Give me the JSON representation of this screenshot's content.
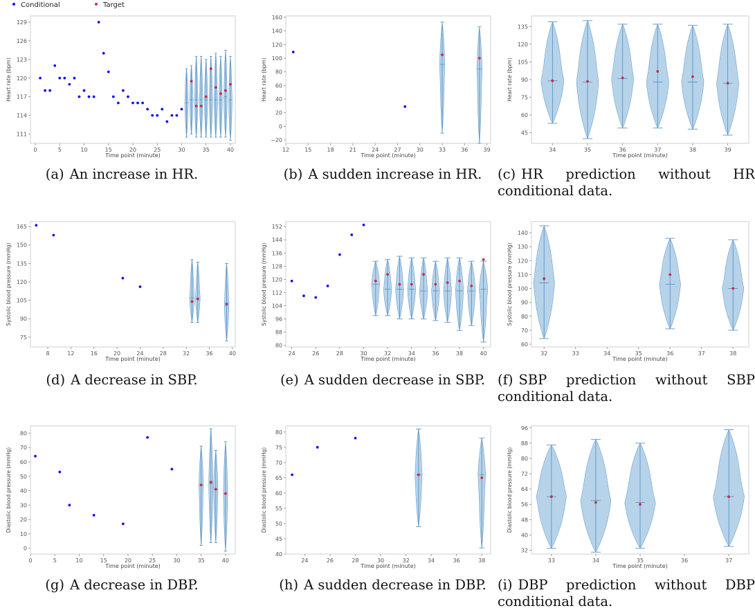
{
  "legend": {
    "items": [
      {
        "label": "Conditional",
        "color": "#1010ee"
      },
      {
        "label": "Target",
        "color": "#cc2b45"
      }
    ]
  },
  "colors": {
    "violin_fill": "#a9cbe6",
    "violin_line": "#5b93c4",
    "axis_frame": "#cfcfcf",
    "tick_text": "#555555"
  },
  "chart_data": [
    {
      "id": "a",
      "type": "scatter",
      "xlabel": "Time point (minute)",
      "ylabel": "Heart rate (bpm)",
      "xlim": [
        -1,
        41
      ],
      "ylim": [
        109.5,
        130
      ],
      "xticks": [
        0,
        5,
        10,
        15,
        20,
        25,
        30,
        35,
        40
      ],
      "yticks": [
        111,
        114,
        117,
        120,
        123,
        126,
        129
      ],
      "conditional": [
        [
          1,
          120
        ],
        [
          2,
          118
        ],
        [
          3,
          118
        ],
        [
          4,
          122
        ],
        [
          5,
          120
        ],
        [
          6,
          120
        ],
        [
          7,
          119
        ],
        [
          8,
          120
        ],
        [
          9,
          117
        ],
        [
          10,
          118
        ],
        [
          11,
          117
        ],
        [
          12,
          117
        ],
        [
          13,
          129
        ],
        [
          14,
          124
        ],
        [
          15,
          121
        ],
        [
          16,
          117
        ],
        [
          17,
          116
        ],
        [
          18,
          118
        ],
        [
          19,
          117
        ],
        [
          20,
          116
        ],
        [
          21,
          116
        ],
        [
          22,
          116
        ],
        [
          23,
          115
        ],
        [
          24,
          114
        ],
        [
          25,
          114
        ],
        [
          26,
          115
        ],
        [
          27,
          113
        ],
        [
          28,
          114
        ],
        [
          29,
          114
        ],
        [
          30,
          115
        ]
      ],
      "violins": [
        {
          "x": 31,
          "min": 110.5,
          "max": 121.5,
          "median": 116,
          "w": 0.28
        },
        {
          "x": 32,
          "min": 111,
          "max": 122,
          "median": 116.5,
          "w": 0.28
        },
        {
          "x": 33,
          "min": 110.5,
          "max": 123.5,
          "median": 116.5,
          "w": 0.28
        },
        {
          "x": 34,
          "min": 110.5,
          "max": 123.5,
          "median": 116.5,
          "w": 0.28
        },
        {
          "x": 35,
          "min": 110.5,
          "max": 123,
          "median": 116.5,
          "w": 0.28
        },
        {
          "x": 36,
          "min": 110.5,
          "max": 123.5,
          "median": 116.5,
          "w": 0.28
        },
        {
          "x": 37,
          "min": 110.5,
          "max": 124,
          "median": 116.5,
          "w": 0.28
        },
        {
          "x": 38,
          "min": 110.5,
          "max": 123.5,
          "median": 116.5,
          "w": 0.28
        },
        {
          "x": 39,
          "min": 110.5,
          "max": 124.5,
          "median": 117,
          "w": 0.28
        },
        {
          "x": 40,
          "min": 110,
          "max": 123.5,
          "median": 116.5,
          "w": 0.28
        }
      ],
      "target": [
        [
          32,
          119.5
        ],
        [
          33,
          115.5
        ],
        [
          34,
          115.5
        ],
        [
          35,
          117
        ],
        [
          36,
          121.5
        ],
        [
          37,
          118.5
        ],
        [
          38,
          117.5
        ],
        [
          39,
          118
        ],
        [
          40,
          119
        ]
      ],
      "caption": {
        "label": "(a)",
        "text": "An increase in HR."
      }
    },
    {
      "id": "b",
      "type": "scatter",
      "xlabel": "Time point (minute)",
      "ylabel": "Heart rate (bpm)",
      "xlim": [
        12,
        39.5
      ],
      "ylim": [
        -25,
        162
      ],
      "xticks": [
        12,
        15,
        18,
        21,
        24,
        27,
        30,
        33,
        36,
        39
      ],
      "yticks": [
        -20,
        0,
        20,
        40,
        60,
        80,
        100,
        120,
        140,
        160
      ],
      "conditional": [
        [
          13,
          109
        ],
        [
          28,
          29
        ]
      ],
      "violins": [
        {
          "x": 33,
          "min": -10,
          "max": 153,
          "median": 91,
          "w": 0.3
        },
        {
          "x": 38,
          "min": -25,
          "max": 146,
          "median": 84,
          "w": 0.3
        }
      ],
      "target": [
        [
          33,
          105
        ],
        [
          38,
          100
        ]
      ],
      "caption": {
        "label": "(b)",
        "text": "A sudden increase in HR."
      }
    },
    {
      "id": "c",
      "type": "violin",
      "xlabel": "Time point (minute)",
      "ylabel": "Heart rate (bpm)",
      "xlim": [
        33.4,
        39.6
      ],
      "ylim": [
        36,
        144
      ],
      "xticks": [
        34,
        35,
        36,
        37,
        38,
        39
      ],
      "yticks": [
        45,
        60,
        75,
        90,
        105,
        120,
        135
      ],
      "conditional": [],
      "violins": [
        {
          "x": 34,
          "min": 53,
          "max": 139,
          "median": 89,
          "w": 0.28
        },
        {
          "x": 35,
          "min": 40,
          "max": 140,
          "median": 88,
          "w": 0.28
        },
        {
          "x": 36,
          "min": 49,
          "max": 137,
          "median": 91,
          "w": 0.28
        },
        {
          "x": 37,
          "min": 49,
          "max": 137,
          "median": 88,
          "w": 0.28
        },
        {
          "x": 38,
          "min": 48,
          "max": 136,
          "median": 88,
          "w": 0.28
        },
        {
          "x": 39,
          "min": 43,
          "max": 137,
          "median": 87,
          "w": 0.28
        }
      ],
      "target": [
        [
          34,
          89
        ],
        [
          35,
          88.5
        ],
        [
          36,
          91.5
        ],
        [
          37,
          97
        ],
        [
          38,
          92.5
        ],
        [
          39,
          87
        ]
      ],
      "caption": {
        "label": "(c)",
        "text": "HR prediction without HR conditional data."
      }
    },
    {
      "id": "d",
      "type": "scatter",
      "xlabel": "Time point (minute)",
      "ylabel": "Systolic blood pressure (mmHg)",
      "xlim": [
        5,
        40.5
      ],
      "ylim": [
        67,
        169
      ],
      "xticks": [
        8,
        12,
        16,
        20,
        24,
        28,
        32,
        36,
        40
      ],
      "yticks": [
        75,
        90,
        105,
        120,
        135,
        150,
        165
      ],
      "conditional": [
        [
          6,
          166
        ],
        [
          9,
          158
        ],
        [
          21,
          123
        ],
        [
          24,
          116
        ]
      ],
      "violins": [
        {
          "x": 33,
          "min": 87,
          "max": 138,
          "median": 107,
          "w": 0.35
        },
        {
          "x": 34,
          "min": 87,
          "max": 136,
          "median": 107,
          "w": 0.35
        },
        {
          "x": 39,
          "min": 72,
          "max": 135,
          "median": 101,
          "w": 0.35
        }
      ],
      "target": [
        [
          33,
          104
        ],
        [
          34,
          106
        ],
        [
          39,
          102
        ]
      ],
      "caption": {
        "label": "(d)",
        "text": "A decrease in SBP."
      }
    },
    {
      "id": "e",
      "type": "scatter",
      "xlabel": "Time point (minute)",
      "ylabel": "Systolic blood pressure (mmHg)",
      "xlim": [
        23.5,
        40.6
      ],
      "ylim": [
        79,
        155
      ],
      "xticks": [
        24,
        26,
        28,
        30,
        32,
        34,
        36,
        38,
        40
      ],
      "yticks": [
        80,
        88,
        96,
        104,
        112,
        120,
        128,
        136,
        144,
        152
      ],
      "conditional": [
        [
          24,
          119
        ],
        [
          25,
          110
        ],
        [
          26,
          109
        ],
        [
          27,
          116
        ],
        [
          28,
          135
        ],
        [
          29,
          147
        ],
        [
          30,
          153
        ]
      ],
      "violins": [
        {
          "x": 31,
          "min": 98,
          "max": 131,
          "median": 117,
          "w": 0.3
        },
        {
          "x": 32,
          "min": 98,
          "max": 132,
          "median": 114,
          "w": 0.3
        },
        {
          "x": 33,
          "min": 96,
          "max": 134,
          "median": 114,
          "w": 0.3
        },
        {
          "x": 34,
          "min": 96,
          "max": 133,
          "median": 114,
          "w": 0.3
        },
        {
          "x": 35,
          "min": 96,
          "max": 133,
          "median": 113,
          "w": 0.3
        },
        {
          "x": 36,
          "min": 95,
          "max": 131,
          "median": 113,
          "w": 0.3
        },
        {
          "x": 37,
          "min": 94,
          "max": 133,
          "median": 113,
          "w": 0.3
        },
        {
          "x": 38,
          "min": 89,
          "max": 133,
          "median": 113,
          "w": 0.3
        },
        {
          "x": 39,
          "min": 92,
          "max": 131,
          "median": 113,
          "w": 0.3
        },
        {
          "x": 40,
          "min": 82,
          "max": 131,
          "median": 114,
          "w": 0.3
        }
      ],
      "target": [
        [
          31,
          119
        ],
        [
          32,
          123
        ],
        [
          33,
          117
        ],
        [
          34,
          117
        ],
        [
          35,
          123
        ],
        [
          36,
          117
        ],
        [
          37,
          118
        ],
        [
          38,
          119
        ],
        [
          39,
          116
        ],
        [
          40,
          132
        ]
      ],
      "caption": {
        "label": "(e)",
        "text": "A sudden decrease in SBP."
      }
    },
    {
      "id": "f",
      "type": "violin",
      "xlabel": "Time point (minute)",
      "ylabel": "Systolic blood pressure (mmHg)",
      "xlim": [
        31.6,
        38.5
      ],
      "ylim": [
        58,
        148
      ],
      "xticks": [
        32,
        33,
        34,
        35,
        36,
        37,
        38
      ],
      "yticks": [
        60,
        70,
        80,
        90,
        100,
        110,
        120,
        130,
        140
      ],
      "conditional": [],
      "violins": [
        {
          "x": 32,
          "min": 64,
          "max": 145,
          "median": 104,
          "w": 0.3
        },
        {
          "x": 36,
          "min": 71,
          "max": 136,
          "median": 103,
          "w": 0.3
        },
        {
          "x": 38,
          "min": 70,
          "max": 135,
          "median": 100,
          "w": 0.3
        }
      ],
      "target": [
        [
          32,
          107
        ],
        [
          36,
          110
        ],
        [
          38,
          100
        ]
      ],
      "caption": {
        "label": "(f)",
        "text": "SBP prediction without SBP conditional data."
      }
    },
    {
      "id": "g",
      "type": "scatter",
      "xlabel": "Time point (minute)",
      "ylabel": "Diastolic blood pressure (mmHg)",
      "xlim": [
        0,
        42
      ],
      "ylim": [
        -4,
        85
      ],
      "xticks": [
        0,
        5,
        10,
        15,
        20,
        25,
        30,
        35,
        40
      ],
      "yticks": [
        0,
        10,
        20,
        30,
        40,
        50,
        60,
        70,
        80
      ],
      "conditional": [
        [
          1,
          64
        ],
        [
          6,
          53
        ],
        [
          8,
          30
        ],
        [
          13,
          23
        ],
        [
          19,
          17
        ],
        [
          24,
          77
        ],
        [
          29,
          55
        ]
      ],
      "violins": [
        {
          "x": 35,
          "min": 2,
          "max": 71,
          "median": 44,
          "w": 0.4
        },
        {
          "x": 37,
          "min": 4,
          "max": 83,
          "median": 45,
          "w": 0.4
        },
        {
          "x": 38,
          "min": 4,
          "max": 68,
          "median": 41,
          "w": 0.4
        },
        {
          "x": 40,
          "min": -2,
          "max": 74,
          "median": 38,
          "w": 0.4
        }
      ],
      "target": [
        [
          35,
          44
        ],
        [
          37,
          46
        ],
        [
          38,
          41
        ],
        [
          40,
          38
        ]
      ],
      "caption": {
        "label": "(g)",
        "text": "A decrease in DBP."
      }
    },
    {
      "id": "h",
      "type": "scatter",
      "xlabel": "Time point (minute)",
      "ylabel": "Diastolic blood pressure (mmHg)",
      "xlim": [
        22.5,
        38.7
      ],
      "ylim": [
        40,
        82
      ],
      "xticks": [
        24,
        26,
        28,
        30,
        32,
        34,
        36,
        38
      ],
      "yticks": [
        40,
        45,
        50,
        55,
        60,
        65,
        70,
        75,
        80
      ],
      "conditional": [
        [
          23,
          66
        ],
        [
          25,
          75
        ],
        [
          28,
          78
        ]
      ],
      "violins": [
        {
          "x": 33,
          "min": 49,
          "max": 81,
          "median": 66,
          "w": 0.25
        },
        {
          "x": 38,
          "min": 42,
          "max": 78,
          "median": 66,
          "w": 0.25
        }
      ],
      "target": [
        [
          33,
          66
        ],
        [
          38,
          65
        ]
      ],
      "caption": {
        "label": "(h)",
        "text": "A sudden decrease in DBP."
      }
    },
    {
      "id": "i",
      "type": "violin",
      "xlabel": "Time point (minute)",
      "ylabel": "Diastolic blood pressure (mmHg)",
      "xlim": [
        32.55,
        37.45
      ],
      "ylim": [
        30,
        97
      ],
      "xticks": [
        33,
        34,
        35,
        36,
        37
      ],
      "yticks": [
        32,
        40,
        48,
        56,
        64,
        72,
        80,
        88,
        96
      ],
      "conditional": [],
      "violins": [
        {
          "x": 33,
          "min": 33,
          "max": 87,
          "median": 60,
          "w": 0.3
        },
        {
          "x": 34,
          "min": 31,
          "max": 90,
          "median": 58,
          "w": 0.3
        },
        {
          "x": 35,
          "min": 33,
          "max": 88,
          "median": 57,
          "w": 0.3
        },
        {
          "x": 37,
          "min": 34,
          "max": 95,
          "median": 60,
          "w": 0.3
        }
      ],
      "target": [
        [
          33,
          60
        ],
        [
          34,
          57
        ],
        [
          35,
          56
        ],
        [
          37,
          60
        ]
      ],
      "caption": {
        "label": "(i)",
        "text": "DBP prediction without DBP conditional data."
      }
    }
  ]
}
